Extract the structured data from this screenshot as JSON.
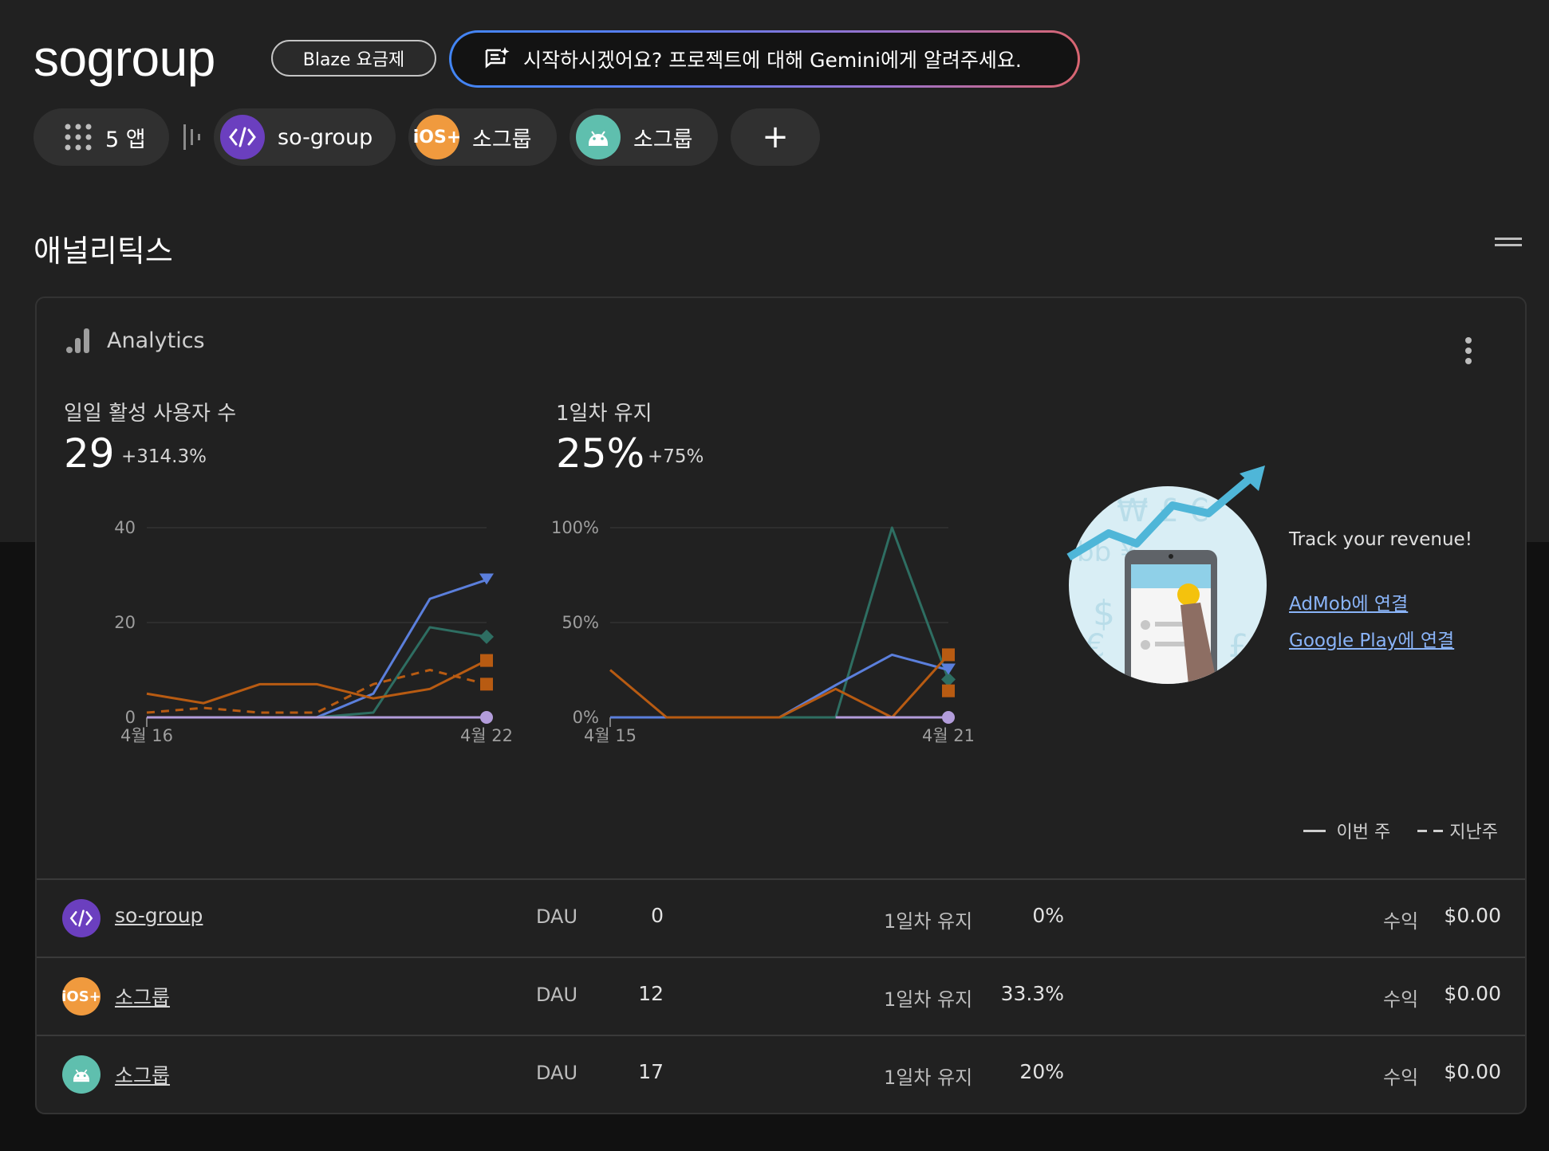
{
  "header": {
    "project_name": "sogroup",
    "plan_badge": "Blaze 요금제",
    "gemini_prompt": "시작하시겠어요? 프로젝트에 대해 Gemini에게 알려주세요.",
    "gemini_icon": "spark-chat-icon"
  },
  "apps_bar": {
    "all_apps_label": "5 앱",
    "apps": [
      {
        "label": "so-group",
        "platform": "web",
        "icon": "code-icon",
        "color": "#6b3fbf"
      },
      {
        "label": "소그룹",
        "platform": "ios",
        "icon": "ios-icon",
        "icon_text": "iOS+",
        "color": "#f09a3e"
      },
      {
        "label": "소그룹",
        "platform": "android",
        "icon": "android-icon",
        "color": "#5fbfae"
      }
    ],
    "add_label": "+"
  },
  "section": {
    "title": "애널리틱스"
  },
  "card": {
    "title": "Analytics",
    "dau": {
      "label": "일일 활성 사용자 수",
      "value": "29",
      "delta": "+314.3%"
    },
    "retention": {
      "label": "1일차 유지",
      "value": "25%",
      "delta": "+75%"
    },
    "promo": {
      "title": "Track your revenue!",
      "admob_link": "AdMob에 연결",
      "play_link": "Google Play에 연결"
    },
    "legend": {
      "this_week": "이번 주",
      "last_week": "지난주"
    },
    "rows": [
      {
        "name": "so-group",
        "platform": "web",
        "dau_label": "DAU",
        "dau": "0",
        "ret_label": "1일차 유지",
        "ret": "0%",
        "rev_label": "수익",
        "rev": "$0.00"
      },
      {
        "name": "소그룹",
        "platform": "ios",
        "dau_label": "DAU",
        "dau": "12",
        "ret_label": "1일차 유지",
        "ret": "33.3%",
        "rev_label": "수익",
        "rev": "$0.00"
      },
      {
        "name": "소그룹",
        "platform": "android",
        "dau_label": "DAU",
        "dau": "17",
        "ret_label": "1일차 유지",
        "ret": "20%",
        "rev_label": "수익",
        "rev": "$0.00"
      }
    ]
  },
  "chart_data": [
    {
      "type": "line",
      "x": [
        "4월 16",
        "4월 17",
        "4월 18",
        "4월 19",
        "4월 20",
        "4월 21",
        "4월 22"
      ],
      "x_tick_labels": [
        "4월 16",
        "4월 22"
      ],
      "y_tick_labels": [
        "0",
        "20",
        "40"
      ],
      "ylim": [
        0,
        40
      ],
      "series": [
        {
          "key": "total",
          "color": "#5b7fdc",
          "style": "solid",
          "marker": "triangle",
          "values": [
            0,
            0,
            0,
            0,
            5,
            25,
            29
          ]
        },
        {
          "key": "android",
          "color": "#2e6e62",
          "style": "solid",
          "marker": "diamond",
          "values": [
            0,
            0,
            0,
            0,
            1,
            19,
            17
          ]
        },
        {
          "key": "ios",
          "color": "#b85b12",
          "style": "solid",
          "marker": "square",
          "values": [
            5,
            3,
            7,
            7,
            4,
            6,
            12
          ]
        },
        {
          "key": "ios_prev",
          "color": "#b85b12",
          "style": "dashed",
          "marker": "square",
          "values": [
            1,
            2,
            1,
            1,
            7,
            10,
            7
          ]
        },
        {
          "key": "web",
          "color": "#b39ddb",
          "style": "solid",
          "marker": "circle",
          "values": [
            0,
            0,
            0,
            0,
            0,
            0,
            0
          ]
        }
      ]
    },
    {
      "type": "line",
      "x": [
        "4월 15",
        "4월 16",
        "4월 17",
        "4월 18",
        "4월 19",
        "4월 20",
        "4월 21"
      ],
      "x_tick_labels": [
        "4월 15",
        "4월 21"
      ],
      "y_tick_labels": [
        "0%",
        "50%",
        "100%"
      ],
      "ylim": [
        0,
        100
      ],
      "series": [
        {
          "key": "android",
          "color": "#2e6e62",
          "style": "solid",
          "marker": "diamond",
          "values": [
            0,
            0,
            0,
            0,
            0,
            100,
            20
          ]
        },
        {
          "key": "total",
          "color": "#5b7fdc",
          "style": "solid",
          "marker": "triangle",
          "values": [
            0,
            0,
            0,
            0,
            17,
            33,
            25
          ]
        },
        {
          "key": "ios",
          "color": "#b85b12",
          "style": "solid",
          "marker": "square",
          "values": [
            25,
            0,
            0,
            0,
            15,
            0,
            33
          ]
        },
        {
          "key": "ios_prev",
          "color": "#b85b12",
          "style": "solid",
          "marker": "square",
          "values": [
            null,
            null,
            null,
            null,
            null,
            null,
            14
          ]
        },
        {
          "key": "web",
          "color": "#b39ddb",
          "style": "solid",
          "marker": "circle",
          "values": [
            null,
            null,
            null,
            null,
            0,
            0,
            0
          ]
        }
      ]
    }
  ]
}
